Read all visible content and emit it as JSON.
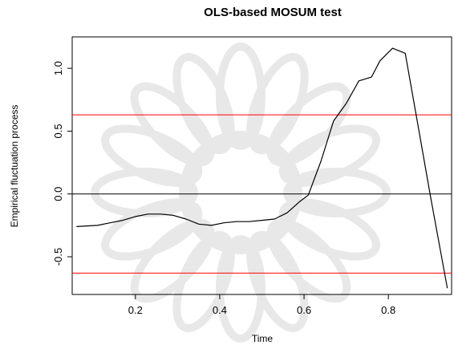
{
  "chart_data": {
    "type": "line",
    "title": "OLS-based MOSUM test",
    "xlabel": "Time",
    "ylabel": "Empirical fluctuation process",
    "xlim": [
      0.05,
      0.95
    ],
    "ylim": [
      -0.8,
      1.25
    ],
    "x_ticks": [
      0.2,
      0.4,
      0.6,
      0.8
    ],
    "x_tick_labels": [
      "0.2",
      "0.4",
      "0.6",
      "0.8"
    ],
    "y_ticks": [
      -0.5,
      0.0,
      0.5,
      1.0
    ],
    "y_tick_labels": [
      "-0.5",
      "0.0",
      "0.5",
      "1.0"
    ],
    "grid": false,
    "legend": "none",
    "series": [
      {
        "color": "#000000",
        "x": [
          0.06,
          0.11,
          0.14,
          0.17,
          0.2,
          0.23,
          0.26,
          0.29,
          0.32,
          0.35,
          0.38,
          0.41,
          0.44,
          0.47,
          0.5,
          0.53,
          0.56,
          0.59,
          0.61,
          0.64,
          0.67,
          0.7,
          0.73,
          0.76,
          0.78,
          0.81,
          0.84,
          0.87,
          0.9,
          0.94
        ],
        "y": [
          -0.26,
          -0.25,
          -0.23,
          -0.21,
          -0.18,
          -0.16,
          -0.16,
          -0.17,
          -0.2,
          -0.24,
          -0.25,
          -0.23,
          -0.22,
          -0.22,
          -0.21,
          -0.2,
          -0.15,
          -0.06,
          -0.01,
          0.26,
          0.58,
          0.72,
          0.9,
          0.93,
          1.06,
          1.16,
          1.12,
          0.55,
          -0.02,
          -0.75
        ]
      }
    ],
    "reference_lines": [
      {
        "y": 0.63,
        "color": "#ff0000"
      },
      {
        "y": -0.63,
        "color": "#ff0000"
      },
      {
        "y": 0.0,
        "color": "#000000"
      }
    ]
  },
  "colors": {
    "series": "#000000",
    "boundary": "#ff0000",
    "zero_line": "#000000"
  }
}
